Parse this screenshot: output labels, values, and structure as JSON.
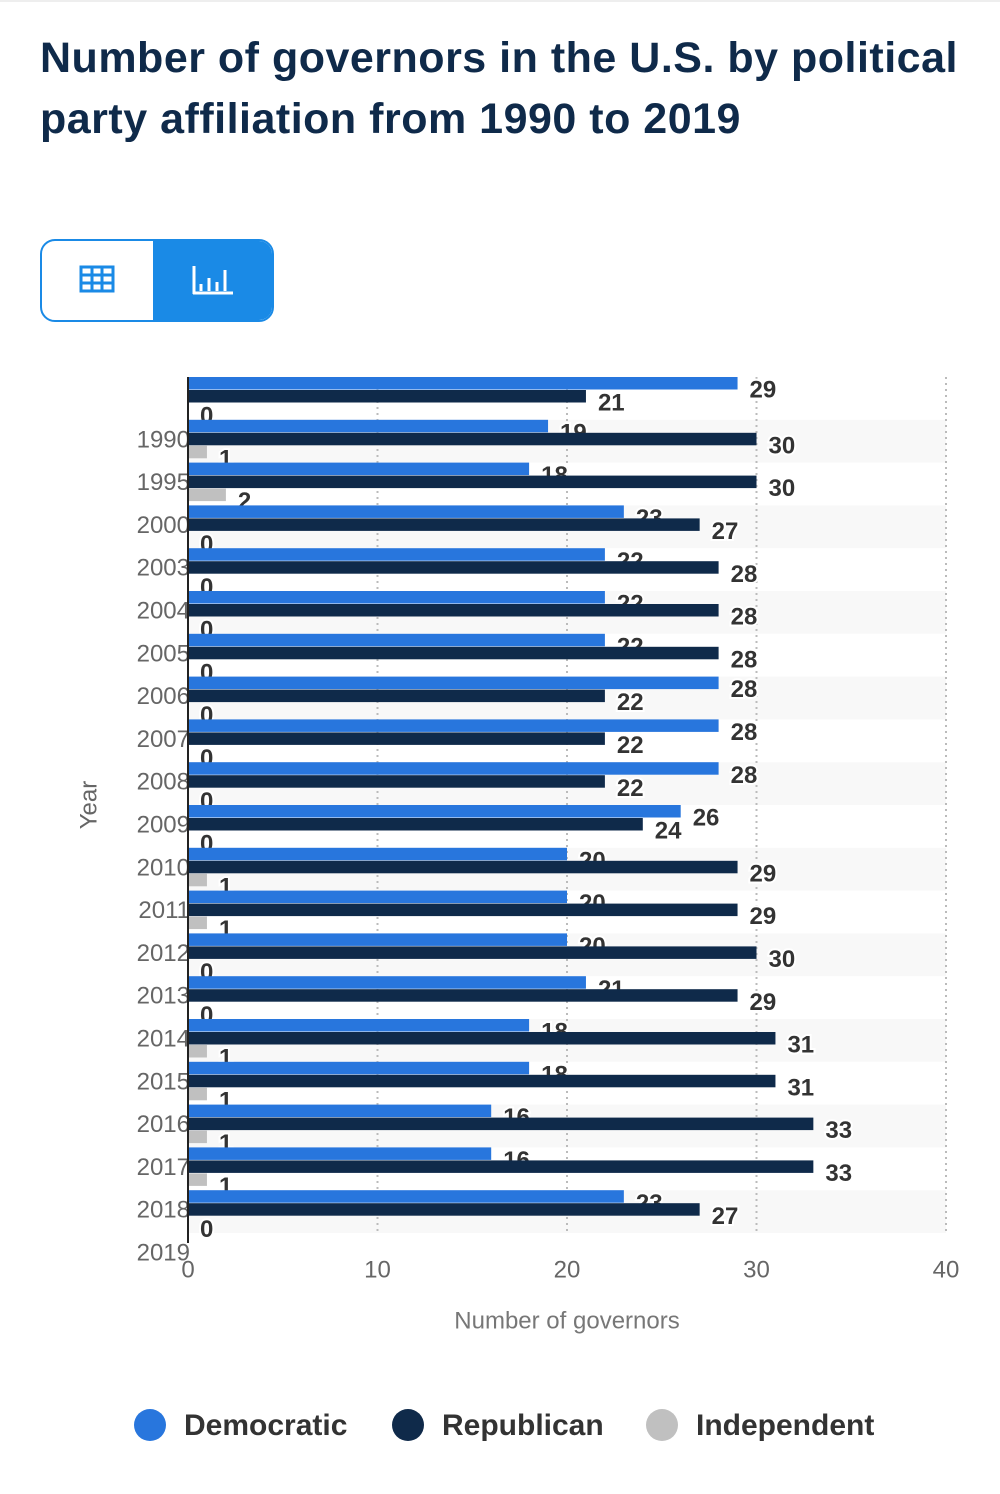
{
  "chart_data": {
    "type": "bar",
    "orientation": "horizontal",
    "title": "Number of governors in the U.S. by political party affiliation from 1990 to 2019",
    "x_label": "Number of governors",
    "y_label": "Year",
    "categories": [
      "1990",
      "1995",
      "2000",
      "2003",
      "2004",
      "2005",
      "2006",
      "2007",
      "2008",
      "2009",
      "2010",
      "2011",
      "2012",
      "2013",
      "2014",
      "2015",
      "2016",
      "2017",
      "2018",
      "2019"
    ],
    "series": [
      {
        "name": "Democratic",
        "color": "#2876dd",
        "values": [
          29,
          19,
          18,
          23,
          22,
          22,
          22,
          28,
          28,
          28,
          26,
          20,
          20,
          20,
          21,
          18,
          18,
          16,
          16,
          23
        ]
      },
      {
        "name": "Republican",
        "color": "#0f2a4a",
        "values": [
          21,
          30,
          30,
          27,
          28,
          28,
          28,
          22,
          22,
          22,
          24,
          29,
          29,
          30,
          29,
          31,
          31,
          33,
          33,
          27
        ]
      },
      {
        "name": "Independent",
        "color": "#c0c0c0",
        "values": [
          0,
          1,
          2,
          0,
          0,
          0,
          0,
          0,
          0,
          0,
          0,
          1,
          1,
          0,
          0,
          1,
          1,
          1,
          1,
          0
        ]
      }
    ],
    "xlim": [
      0,
      40
    ],
    "xticks": [
      0,
      10,
      20,
      30,
      40
    ],
    "grid": true,
    "legend": "bottom"
  }
}
